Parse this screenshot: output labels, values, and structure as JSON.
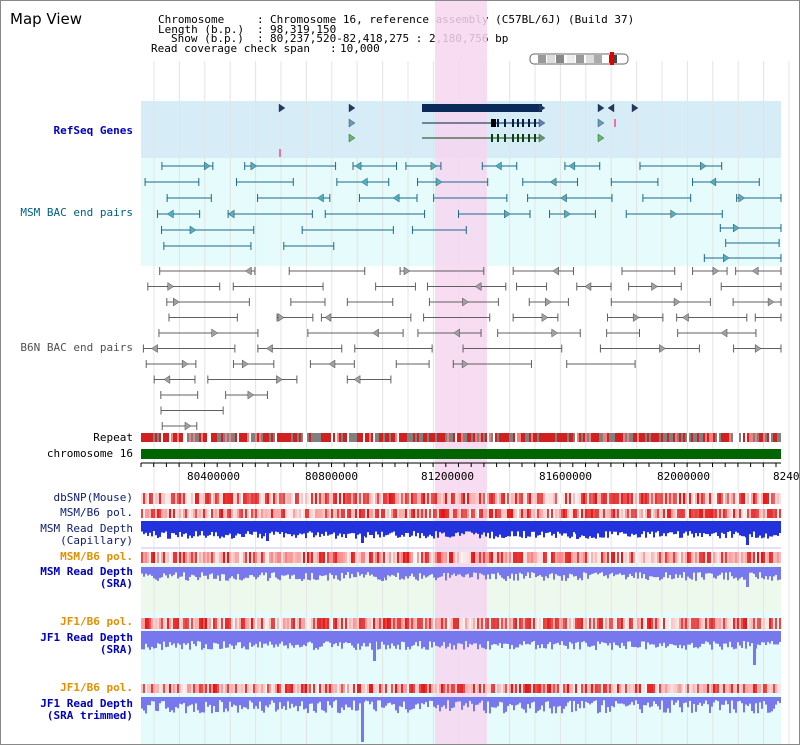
{
  "title": "Map View",
  "header": {
    "chromosome_label": "Chromosome",
    "chromosome_value": "Chromosome 16, reference assembly (C57BL/6J) (Build 37)",
    "length_label": "Length (b.p.)",
    "length_value": "98,319,150",
    "show_label": "Show (b.p.)",
    "show_value": "80,237,520-82,418,275 : 2,180,756 bp",
    "coverage_label": "Read coverage check span",
    "coverage_value": "10,000"
  },
  "tracks": {
    "refseq": "RefSeq Genes",
    "msm_bac": "MSM BAC end pairs",
    "b6n_bac": "B6N BAC end pairs",
    "repeat": "Repeat",
    "chromosome": "chromosome 16",
    "dbsnp": "dbSNP(Mouse)",
    "msm_b6_pol": "MSM/B6 pol.",
    "msm_depth_cap_1": "MSM Read Depth",
    "msm_depth_cap_2": "(Capillary)",
    "msm_b6_pol2": "MSM/B6 pol.",
    "msm_depth_sra_1": "MSM Read Depth",
    "msm_depth_sra_2": "(SRA)",
    "jf1_pol": "JF1/B6 pol.",
    "jf1_depth_1": "JF1 Read Depth",
    "jf1_depth_2": "(SRA)",
    "jf1_pol2": "JF1/B6 pol.",
    "jf1_trim_1": "JF1 Read Depth",
    "jf1_trim_2": "(SRA trimmed)"
  },
  "axis": {
    "ticks": [
      "80400000",
      "80800000",
      "81200000",
      "81600000",
      "82000000",
      "8240"
    ]
  },
  "colors": {
    "refseq_bg": "#d6ecf7",
    "msm_bg": "#e6fbfb",
    "highlight": "#f6d6f0",
    "chrom": "#006400",
    "depth_cap": "#2233dd",
    "depth_sra": "#7777ee"
  }
}
